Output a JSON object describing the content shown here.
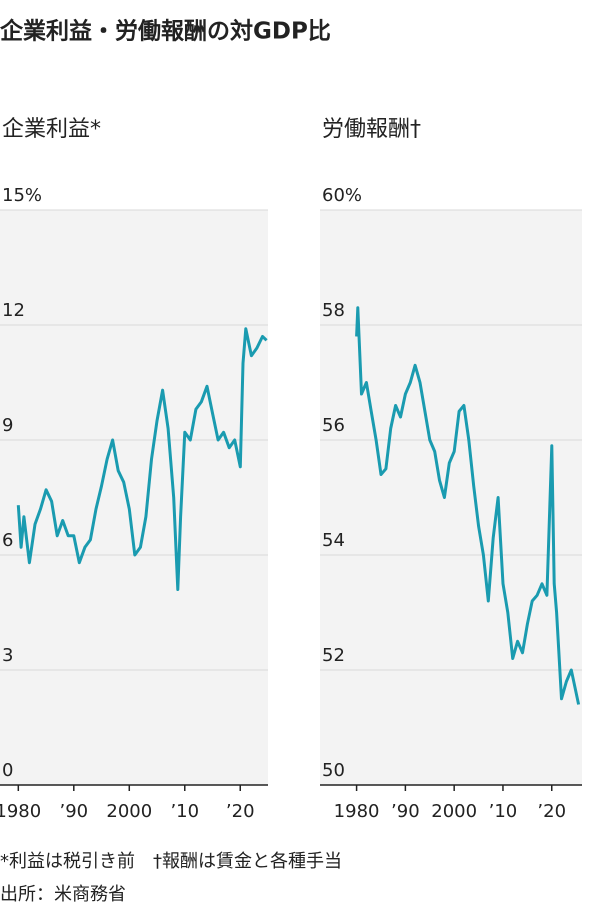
{
  "title": "企業利益・労働報酬の対GDP比",
  "notes": [
    "*利益は税引き前　†報酬は賃金と各種手当",
    "出所：米商務省"
  ],
  "chart_data": [
    {
      "type": "line",
      "title": "企業利益*",
      "color": "#1a9bb0",
      "grid": true,
      "xlim": [
        1976.7,
        2025
      ],
      "ylim": [
        0,
        15
      ],
      "xticks": [
        1980,
        {
          "value": 1990,
          "label": "’90"
        },
        2000,
        {
          "value": 2010,
          "label": "’10"
        },
        {
          "value": 2020,
          "label": "’20"
        }
      ],
      "yticks": [
        {
          "value": 15,
          "label": "15%"
        },
        12,
        9,
        6,
        3,
        0
      ],
      "x": [
        1980,
        1980.5,
        1981,
        1982,
        1983,
        1984,
        1985,
        1986,
        1987,
        1988,
        1989,
        1990,
        1991,
        1992,
        1993,
        1994,
        1995,
        1996,
        1997,
        1998,
        1999,
        2000,
        2001,
        2002,
        2003,
        2004,
        2005,
        2006,
        2007,
        2008,
        2008.75,
        2009.25,
        2010,
        2011,
        2012,
        2013,
        2014,
        2015,
        2016,
        2017,
        2018,
        2019,
        2020,
        2020.5,
        2021,
        2022,
        2023,
        2024,
        2024.75
      ],
      "values": [
        7.3,
        6.2,
        7.0,
        5.8,
        6.8,
        7.2,
        7.7,
        7.4,
        6.5,
        6.9,
        6.5,
        6.5,
        5.8,
        6.2,
        6.4,
        7.2,
        7.8,
        8.5,
        9.0,
        8.2,
        7.9,
        7.2,
        6.0,
        6.2,
        7.0,
        8.5,
        9.5,
        10.3,
        9.3,
        7.5,
        5.1,
        7.0,
        9.2,
        9.0,
        9.8,
        10.0,
        10.4,
        9.7,
        9.0,
        9.2,
        8.8,
        9.0,
        8.3,
        11.0,
        11.9,
        11.2,
        11.4,
        11.7,
        11.6
      ]
    },
    {
      "type": "line",
      "title": "労働報酬†",
      "color": "#1a9bb0",
      "grid": true,
      "xlim": [
        1972.5,
        2026.2
      ],
      "ylim": [
        50,
        60
      ],
      "xticks": [
        1980,
        {
          "value": 1990,
          "label": "’90"
        },
        2000,
        {
          "value": 2010,
          "label": "’10"
        },
        {
          "value": 2020,
          "label": "’20"
        }
      ],
      "yticks": [
        {
          "value": 60,
          "label": "60%"
        },
        58,
        56,
        54,
        52,
        50
      ],
      "x": [
        1980,
        1980.25,
        1981,
        1982,
        1983,
        1984,
        1985,
        1986,
        1987,
        1988,
        1989,
        1990,
        1991,
        1992,
        1993,
        1994,
        1995,
        1996,
        1997,
        1998,
        1999,
        2000,
        2001,
        2002,
        2003,
        2004,
        2005,
        2006,
        2007,
        2008,
        2009,
        2010,
        2011,
        2012,
        2013,
        2014,
        2015,
        2016,
        2017,
        2018,
        2019,
        2020,
        2020.5,
        2021,
        2022,
        2023,
        2024,
        2025.5
      ],
      "values": [
        57.8,
        58.3,
        56.8,
        57.0,
        56.5,
        56.0,
        55.4,
        55.5,
        56.2,
        56.6,
        56.4,
        56.8,
        57.0,
        57.3,
        57.0,
        56.5,
        56.0,
        55.8,
        55.3,
        55.0,
        55.6,
        55.8,
        56.5,
        56.6,
        56.0,
        55.2,
        54.5,
        54.0,
        53.2,
        54.3,
        55.0,
        53.5,
        53.0,
        52.2,
        52.5,
        52.3,
        52.8,
        53.2,
        53.3,
        53.5,
        53.3,
        55.9,
        53.5,
        53.0,
        51.5,
        51.8,
        52.0,
        51.4
      ]
    }
  ]
}
